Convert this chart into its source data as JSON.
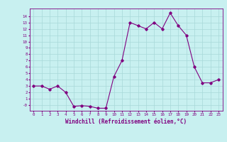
{
  "x": [
    0,
    1,
    2,
    3,
    4,
    5,
    6,
    7,
    8,
    9,
    10,
    11,
    12,
    13,
    14,
    15,
    16,
    17,
    18,
    19,
    20,
    21,
    22,
    23
  ],
  "y": [
    3.0,
    3.0,
    2.5,
    3.0,
    2.0,
    -0.2,
    -0.1,
    -0.2,
    -0.5,
    -0.5,
    4.5,
    7.0,
    13.0,
    12.5,
    12.0,
    13.0,
    12.0,
    14.5,
    12.5,
    11.0,
    6.0,
    3.5,
    3.5,
    4.0
  ],
  "xlabel": "Windchill (Refroidissement éolien,°C)",
  "bg_color": "#c8f0f0",
  "grid_color": "#a8d8d8",
  "line_color": "#800080",
  "marker_color": "#800080",
  "ytick_labels": [
    "-0",
    "1",
    "2",
    "3",
    "4",
    "5",
    "6",
    "7",
    "8",
    "9",
    "10",
    "11",
    "12",
    "13",
    "14"
  ],
  "ylim": [
    -0.9,
    15.2
  ],
  "xlim": [
    -0.5,
    23.5
  ],
  "yticks": [
    0,
    1,
    2,
    3,
    4,
    5,
    6,
    7,
    8,
    9,
    10,
    11,
    12,
    13,
    14
  ],
  "xticks": [
    0,
    1,
    2,
    3,
    4,
    5,
    6,
    7,
    8,
    9,
    10,
    11,
    12,
    13,
    14,
    15,
    16,
    17,
    18,
    19,
    20,
    21,
    22,
    23
  ]
}
